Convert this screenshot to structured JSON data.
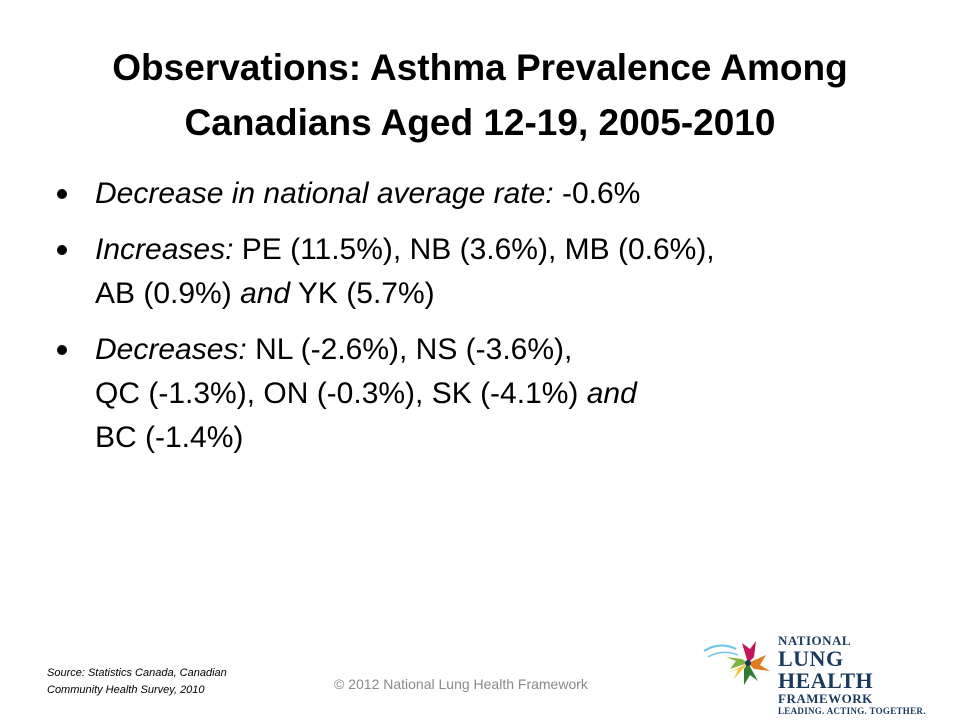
{
  "title": {
    "line1": "Observations: Asthma Prevalence Among",
    "line2": "Canadians Aged 12-19, 2005-2010"
  },
  "bullets": [
    {
      "lead": "Decrease in national average rate: ",
      "text": "-0.6%"
    },
    {
      "lead": "Increases: ",
      "text1": "PE (11.5%), NB (3.6%), MB (0.6%),",
      "text2": "AB (0.9%) ",
      "conj": "and",
      "text3": " YK (5.7%)"
    },
    {
      "lead": "Decreases: ",
      "text1": "NL (-2.6%), NS (-3.6%),",
      "text2": "QC (-1.3%), ON (-0.3%), SK (-4.1%) ",
      "conj": "and",
      "text3": "BC (-1.4%)"
    }
  ],
  "source": {
    "line1": "Source: Statistics  Canada, Canadian",
    "line2": "Community Health Survey, 2010"
  },
  "copyright": "© 2012 National Lung Health Framework",
  "logo": {
    "line1": "NATIONAL",
    "line2": "LUNG HEALTH",
    "line3": "FRAMEWORK",
    "tagline": "LEADING. ACTING. TOGETHER.",
    "colors": [
      "#1a3a5c",
      "#e07a1f",
      "#c2185b",
      "#2e7d32",
      "#7cb342",
      "#6ec6e8"
    ]
  }
}
